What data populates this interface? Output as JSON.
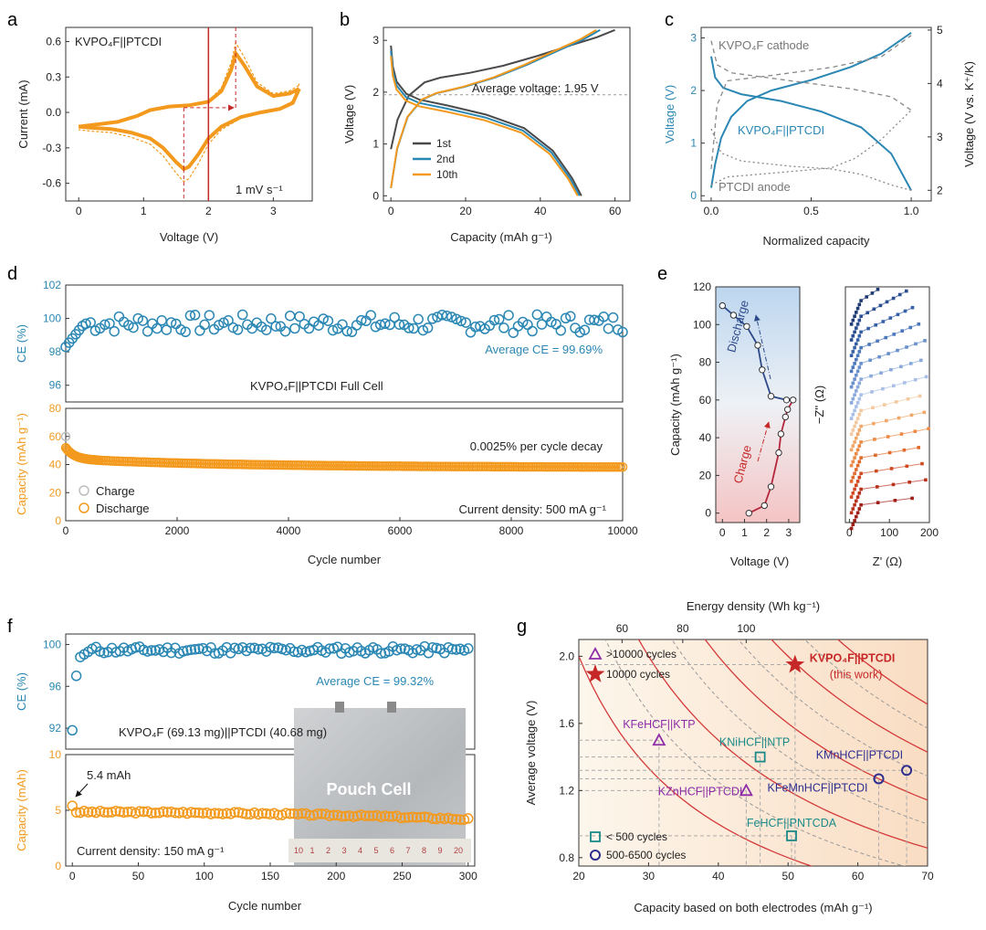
{
  "chart_data": [
    {
      "panel": "a",
      "type": "line",
      "title": "KVPO₄F||PTCDI",
      "annotation": "1 mV s⁻¹",
      "xlabel": "Voltage (V)",
      "ylabel": "Current (mA)",
      "xlim": [
        -0.2,
        3.6
      ],
      "ylim": [
        -0.75,
        0.72
      ],
      "xticks": [
        "0",
        "1",
        "2",
        "3"
      ],
      "yticks": [
        "0.6",
        "0.3",
        "0.0",
        "-0.3",
        "-0.6"
      ],
      "colors": {
        "cv": "#f39a1e",
        "marker": "#c62828"
      },
      "reduction_peak_v": 1.62,
      "oxidation_peak_v": 2.42,
      "average_v": 2.0
    },
    {
      "panel": "b",
      "type": "line",
      "xlabel": "Capacity (mAh g⁻¹)",
      "ylabel": "Voltage (V)",
      "xlim": [
        -2,
        64
      ],
      "ylim": [
        -0.1,
        3.25
      ],
      "xticks": [
        "0",
        "20",
        "40",
        "60"
      ],
      "yticks": [
        "0",
        "1",
        "2",
        "3"
      ],
      "annotation": "Average voltage: 1.95 V",
      "average_voltage": 1.95,
      "series": [
        {
          "name": "1st",
          "color": "#4a4a4a",
          "charge_capacity": 60,
          "discharge_capacity": 51
        },
        {
          "name": "2nd",
          "color": "#2b87b3",
          "charge_capacity": 56,
          "discharge_capacity": 50.5
        },
        {
          "name": "10th",
          "color": "#f39a1e",
          "charge_capacity": 55,
          "discharge_capacity": 50
        }
      ]
    },
    {
      "panel": "c",
      "type": "line",
      "xlabel": "Normalized capacity",
      "ylabel": "Voltage (V)",
      "y2label": "Voltage (V vs. K⁺/K)",
      "xlim": [
        -0.05,
        1.1
      ],
      "ylim": [
        -0.1,
        3.2
      ],
      "y2lim": [
        1.8,
        5.05
      ],
      "xticks": [
        "0.0",
        "0.5",
        "1.0"
      ],
      "yticks": [
        "0",
        "1",
        "2",
        "3"
      ],
      "y2ticks": [
        "2",
        "3",
        "4",
        "5"
      ],
      "labels": {
        "cathode": "KVPO₄F cathode",
        "full": "KVPO₄F||PTCDI",
        "anode": "PTCDI anode"
      },
      "colors": {
        "full": "#2b87b3",
        "cathode": "#888888",
        "anode": "#888888"
      }
    },
    {
      "panel": "d",
      "type": "scatter",
      "xlabel": "Cycle number",
      "xlim": [
        0,
        10000
      ],
      "xticks": [
        "0",
        "2000",
        "4000",
        "6000",
        "8000",
        "10000"
      ],
      "ce": {
        "ylabel": "CE (%)",
        "ylim": [
          95,
          102
        ],
        "yticks": [
          "102",
          "100",
          "98",
          "96"
        ],
        "average": "Average CE = 99.69%",
        "mean_value": 99.69,
        "color": "#2b87b3"
      },
      "capacity": {
        "ylabel": "Capacity (mAh g⁻¹)",
        "ylim": [
          0,
          80
        ],
        "yticks": [
          "80",
          "60",
          "40",
          "20",
          "0"
        ],
        "initial_charge": 60,
        "initial_discharge": 52,
        "final_discharge": 38,
        "color": "#f39a1e"
      },
      "label": "KVPO₄F||PTCDI Full Cell",
      "decay": "0.0025% per cycle decay",
      "current": "Current density: 500 mA g⁻¹",
      "legend": [
        "Charge",
        "Discharge"
      ]
    },
    {
      "panel": "e",
      "type": "line",
      "left": {
        "xlabel": "Voltage (V)",
        "ylabel": "Capacity (mAh g⁻¹)",
        "xlim": [
          -0.3,
          3.5
        ],
        "ylim": [
          -5,
          120
        ],
        "xticks": [
          "0",
          "1",
          "2",
          "3"
        ],
        "yticks": [
          "0",
          "20",
          "40",
          "60",
          "80",
          "100",
          "120"
        ],
        "charge_label": "Charge",
        "discharge_label": "Discharge",
        "charge_points": [
          [
            1.2,
            0
          ],
          [
            1.9,
            4
          ],
          [
            2.2,
            14
          ],
          [
            2.55,
            32
          ],
          [
            2.65,
            42
          ],
          [
            2.85,
            51
          ],
          [
            2.95,
            55
          ],
          [
            3.2,
            60
          ]
        ],
        "discharge_points": [
          [
            3.2,
            60
          ],
          [
            2.9,
            60
          ],
          [
            2.2,
            62
          ],
          [
            1.8,
            76
          ],
          [
            1.6,
            89
          ],
          [
            1.1,
            99
          ],
          [
            0.5,
            105
          ],
          [
            0.0,
            110
          ]
        ]
      },
      "right": {
        "xlabel": "Z' (Ω)",
        "ylabel": "−Z'' (Ω)",
        "xticks": [
          "0",
          "100",
          "200"
        ],
        "xlim": [
          -10,
          200
        ],
        "ylim": [
          0,
          120
        ]
      }
    },
    {
      "panel": "f",
      "type": "scatter",
      "xlabel": "Cycle number",
      "xlim": [
        -5,
        305
      ],
      "xticks": [
        "0",
        "50",
        "100",
        "150",
        "200",
        "250",
        "300"
      ],
      "ce": {
        "ylabel": "CE (%)",
        "ylim": [
          90,
          101
        ],
        "yticks": [
          "100",
          "96",
          "92"
        ],
        "average": "Average CE = 99.32%",
        "first_value": 91.8,
        "mean_value": 99.32,
        "color": "#2b87b3"
      },
      "capacity": {
        "ylabel": "Capacity (mAh)",
        "ylim": [
          0,
          10
        ],
        "yticks": [
          "10",
          "5",
          "0"
        ],
        "initial": 5.4,
        "final": 4.2,
        "color": "#f39a1e"
      },
      "label": "KVPO₄F (69.13 mg)||PTCDI (40.68 mg)",
      "callout": "5.4 mAh",
      "current": "Current density: 150 mA g⁻¹",
      "photo_label": "Pouch Cell",
      "ruler_numbers": [
        "10",
        "1",
        "2",
        "3",
        "4",
        "5",
        "6",
        "7",
        "8",
        "9",
        "20"
      ]
    },
    {
      "panel": "g",
      "type": "scatter",
      "xlabel": "Capacity based on both electrodes (mAh g⁻¹)",
      "ylabel": "Average voltage (V)",
      "x2label": "Energy density (Wh kg⁻¹)",
      "xlim": [
        20,
        70
      ],
      "ylim": [
        0.75,
        2.1
      ],
      "xticks": [
        "20",
        "30",
        "40",
        "50",
        "60",
        "70"
      ],
      "yticks": [
        "0.8",
        "1.2",
        "1.6",
        "2.0"
      ],
      "x2ticks": [
        {
          "label": "60",
          "x": 26.2
        },
        {
          "label": "80",
          "x": 34.9
        },
        {
          "label": "100",
          "x": 44.0
        }
      ],
      "iso_energy_solid": [
        40,
        60,
        80,
        100,
        120
      ],
      "iso_energy_dashed": [
        50,
        70,
        90,
        110
      ],
      "legend": [
        ">10000 cycles",
        "10000 cycles",
        "< 500 cycles",
        "500-6500 cycles"
      ],
      "points": [
        {
          "name": "KVPO₄F||PTCDI",
          "sub": "(this work)",
          "x": 51,
          "y": 1.95,
          "marker": "star",
          "color": "#c62828"
        },
        {
          "name": "KFeHCF||KTP",
          "x": 31.5,
          "y": 1.5,
          "marker": "triangle",
          "color": "#8e2ca8"
        },
        {
          "name": "KZnHCF||PTCDI",
          "x": 44,
          "y": 1.2,
          "marker": "triangle",
          "color": "#8e2ca8"
        },
        {
          "name": "KNiHCF||NTP",
          "x": 46,
          "y": 1.4,
          "marker": "square",
          "color": "#1a8a88"
        },
        {
          "name": "FeHCF||PNTCDA",
          "x": 50.5,
          "y": 0.93,
          "marker": "square",
          "color": "#1a8a88"
        },
        {
          "name": "KMnHCF||PTCDI",
          "x": 67,
          "y": 1.32,
          "marker": "circle",
          "color": "#2e2e8f"
        },
        {
          "name": "KFeMnHCF||PTCDI",
          "x": 63,
          "y": 1.27,
          "marker": "circle",
          "color": "#2e2e8f"
        }
      ]
    }
  ]
}
